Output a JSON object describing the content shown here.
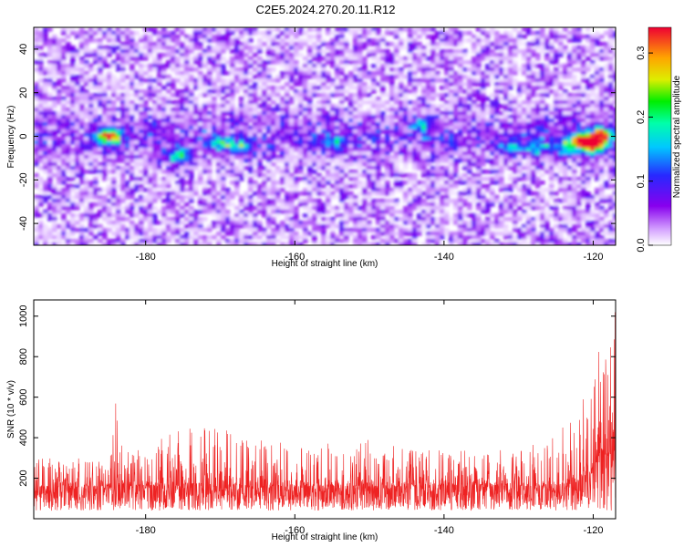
{
  "title": "C2E5.2024.270.20.11.R12",
  "chart_data": [
    {
      "type": "heatmap",
      "xlabel": "Height of straight line (km)",
      "ylabel": "Frequency (Hz)",
      "xlim": [
        -195,
        -117
      ],
      "ylim": [
        -50,
        50
      ],
      "xticks": [
        -180,
        -160,
        -140,
        -120
      ],
      "xtick_labels": [
        "-180",
        "-160",
        "-140",
        "-120"
      ],
      "yticks": [
        -40,
        -20,
        0,
        20,
        40
      ],
      "ytick_labels": [
        "-40",
        "-20",
        "0",
        "20",
        "40"
      ],
      "colorbar": {
        "label": "Normalized spectral amplitude",
        "range": [
          0,
          0.34
        ],
        "ticks": [
          0.0,
          0.1,
          0.2,
          0.3
        ],
        "tick_labels": [
          "0.0",
          "0.1",
          "0.2",
          "0.3"
        ]
      },
      "hotspots": [
        {
          "x": -185,
          "y": 0,
          "amplitude": 0.33
        },
        {
          "x": -175.5,
          "y": -9,
          "amplitude": 0.2
        },
        {
          "x": -170,
          "y": -3,
          "amplitude": 0.17
        },
        {
          "x": -167,
          "y": -5,
          "amplitude": 0.15
        },
        {
          "x": -155,
          "y": -3,
          "amplitude": 0.12
        },
        {
          "x": -143,
          "y": 5,
          "amplitude": 0.12
        },
        {
          "x": -131,
          "y": -5,
          "amplitude": 0.13
        },
        {
          "x": -127,
          "y": -5,
          "amplitude": 0.14
        },
        {
          "x": -123.5,
          "y": -5,
          "amplitude": 0.15
        },
        {
          "x": -121.5,
          "y": -2,
          "amplitude": 0.3
        },
        {
          "x": -120,
          "y": -5,
          "amplitude": 0.28
        },
        {
          "x": -119,
          "y": 0,
          "amplitude": 0.33
        }
      ]
    },
    {
      "type": "line",
      "xlabel": "Height of straight line (km)",
      "ylabel": "SNR (10 * v/v)",
      "xlim": [
        -195,
        -117
      ],
      "ylim": [
        0,
        1080
      ],
      "xticks": [
        -180,
        -160,
        -140,
        -120
      ],
      "xtick_labels": [
        "-180",
        "-160",
        "-140",
        "-120"
      ],
      "yticks": [
        200,
        400,
        600,
        800,
        1000
      ],
      "ytick_labels": [
        "200",
        "400",
        "600",
        "800",
        "1000"
      ],
      "series": [
        {
          "color": "#ee2222",
          "baseline": 160,
          "profile": [
            {
              "x": -195,
              "max": 300
            },
            {
              "x": -185,
              "max": 300
            },
            {
              "x": -184,
              "max": 580
            },
            {
              "x": -183,
              "max": 330
            },
            {
              "x": -175,
              "max": 440
            },
            {
              "x": -174,
              "max": 480
            },
            {
              "x": -170,
              "max": 450
            },
            {
              "x": -160,
              "max": 370
            },
            {
              "x": -150,
              "max": 390
            },
            {
              "x": -140,
              "max": 340
            },
            {
              "x": -130,
              "max": 340
            },
            {
              "x": -125,
              "max": 430
            },
            {
              "x": -122,
              "max": 570
            },
            {
              "x": -120,
              "max": 720
            },
            {
              "x": -119,
              "max": 1080
            },
            {
              "x": -118,
              "max": 1000
            },
            {
              "x": -117,
              "max": 1050
            }
          ]
        }
      ]
    }
  ]
}
